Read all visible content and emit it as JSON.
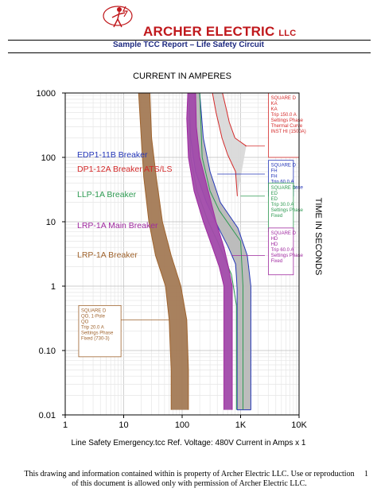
{
  "header": {
    "company": "ARCHER ELECTRIC",
    "company_suffix": "LLC",
    "report_title": "Sample TCC Report – Life Safety Circuit",
    "logo_icon": "lightning-man-logo",
    "logo_color": "#c0181c"
  },
  "footer": {
    "info_line": "Line Safety Emergency.tcc    Ref. Voltage: 480V    Current in Amps x 1",
    "copyright_1": "This drawing and information contained within is property of Archer Electric LLC.  Use or reproduction",
    "copyright_2": "of this document is allowed only with permission of Archer Electric LLC.",
    "page_number": "1"
  },
  "chart_data": {
    "type": "line",
    "xscale": "log",
    "yscale": "log",
    "xlim": [
      1,
      10000
    ],
    "ylim": [
      0.01,
      1000
    ],
    "xlabel": "CURRENT IN AMPERES",
    "ylabel": "TIME IN SECONDS",
    "x_ticks": [
      {
        "value": 1,
        "label": "1"
      },
      {
        "value": 10,
        "label": "10"
      },
      {
        "value": 100,
        "label": "100"
      },
      {
        "value": 1000,
        "label": "1K"
      },
      {
        "value": 10000,
        "label": "10K"
      }
    ],
    "y_ticks": [
      {
        "value": 1000,
        "label": "1000"
      },
      {
        "value": 100,
        "label": "100"
      },
      {
        "value": 10,
        "label": "10"
      },
      {
        "value": 1,
        "label": "1"
      },
      {
        "value": 0.1,
        "label": "0.10"
      },
      {
        "value": 0.01,
        "label": "0.01"
      }
    ],
    "grid": true,
    "series": [
      {
        "name": "DP1-12A Breaker ATS/LS",
        "color": "#d42a2a",
        "fill": "#d9d9d9",
        "label_position": {
          "x": 1.6,
          "y": 60
        },
        "left": [
          [
            330,
            1000
          ],
          [
            380,
            500
          ],
          [
            480,
            200
          ],
          [
            600,
            110
          ],
          [
            820,
            60
          ],
          [
            830,
            50
          ],
          [
            880,
            25
          ]
        ],
        "right": [
          [
            490,
            1000
          ],
          [
            560,
            600
          ],
          [
            640,
            350
          ],
          [
            800,
            200
          ],
          [
            1250,
            150
          ]
        ],
        "note": [
          "SQUARE D",
          "KA",
          "KA",
          "Trip 150.0 A",
          "Settings Phase",
          "Thermal Curve",
          "INST HI (1500A)"
        ],
        "note_box": {
          "x": 3000,
          "y": 1000,
          "x2": 10000,
          "y2": 100
        }
      },
      {
        "name": "EDP1-11B Breaker",
        "color": "#2436b8",
        "fill": "#b8b8b8",
        "label_position": {
          "x": 1.6,
          "y": 100
        },
        "left": [
          [
            130,
            1000
          ],
          [
            140,
            200
          ],
          [
            170,
            60
          ],
          [
            260,
            20
          ],
          [
            420,
            8
          ],
          [
            620,
            4
          ],
          [
            820,
            2.2
          ],
          [
            850,
            1.4
          ],
          [
            870,
            0.9
          ]
        ],
        "right": [
          [
            200,
            1000
          ],
          [
            230,
            200
          ],
          [
            300,
            60
          ],
          [
            450,
            20
          ],
          [
            900,
            8
          ],
          [
            1300,
            3
          ],
          [
            1500,
            1
          ]
        ],
        "bottom_y": 0.012,
        "bottom_x_left": 870,
        "bottom_x_right": 1500,
        "note": [
          "SQUARE D",
          "FH",
          "FH",
          "Trip 60.0 A",
          "Settings Phase",
          "Fixed"
        ],
        "note_box": {
          "x": 3000,
          "y": 90,
          "x2": 8000,
          "y2": 25
        }
      },
      {
        "name": "LLP-1A Breaker",
        "color": "#2e9a52",
        "fill": "none",
        "label_position": {
          "x": 1.6,
          "y": 24
        },
        "left": [
          [
            130,
            1000
          ],
          [
            140,
            100
          ],
          [
            180,
            30
          ],
          [
            280,
            10
          ],
          [
            400,
            5
          ],
          [
            700,
            1.5
          ],
          [
            850,
            0.5
          ],
          [
            850,
            0.012
          ]
        ],
        "right": [
          [
            200,
            1000
          ],
          [
            220,
            100
          ],
          [
            300,
            30
          ],
          [
            430,
            15
          ],
          [
            1000,
            5
          ],
          [
            1100,
            1
          ],
          [
            1100,
            0.012
          ]
        ],
        "note": [
          "SQUARE D",
          "ED",
          "ED",
          "Trip 30.0 A",
          "Settings Phase",
          "Fixed"
        ],
        "note_box": {
          "x": 3000,
          "y": 40,
          "x2": 8000,
          "y2": 7
        }
      },
      {
        "name": "LRP-1A Main Breaker",
        "color": "#a02aa0",
        "fill": "#a14aaa",
        "label_position": {
          "x": 1.6,
          "y": 8
        },
        "left": [
          [
            125,
            1000
          ],
          [
            120,
            400
          ],
          [
            128,
            100
          ],
          [
            160,
            30
          ],
          [
            230,
            10
          ],
          [
            330,
            4
          ],
          [
            430,
            2
          ],
          [
            520,
            1
          ],
          [
            520,
            0.012
          ]
        ],
        "right": [
          [
            170,
            1000
          ],
          [
            175,
            300
          ],
          [
            200,
            100
          ],
          [
            280,
            30
          ],
          [
            380,
            10
          ],
          [
            520,
            4
          ],
          [
            620,
            2
          ],
          [
            720,
            1
          ],
          [
            720,
            0.012
          ]
        ],
        "note": [
          "SQUARE D",
          "HD",
          "HD",
          "Trip 60.0 A",
          "Settings Phase",
          "Fixed"
        ],
        "note_box": {
          "x": 3000,
          "y": 8,
          "x2": 8000,
          "y2": 1.5
        }
      },
      {
        "name": "LRP-1A Breaker",
        "color": "#a0642e",
        "fill": "#a37a55",
        "label_position": {
          "x": 1.6,
          "y": 2.8
        },
        "left": [
          [
            18,
            1000
          ],
          [
            20,
            200
          ],
          [
            22,
            50
          ],
          [
            27,
            10
          ],
          [
            35,
            3
          ],
          [
            52,
            1
          ],
          [
            60,
            0.3
          ],
          [
            65,
            0.05
          ],
          [
            65,
            0.012
          ]
        ],
        "right": [
          [
            28,
            1000
          ],
          [
            30,
            200
          ],
          [
            36,
            50
          ],
          [
            46,
            10
          ],
          [
            65,
            3
          ],
          [
            95,
            1
          ],
          [
            120,
            0.3
          ],
          [
            128,
            0.05
          ],
          [
            128,
            0.012
          ]
        ],
        "note": [
          "SQUARE D",
          "QO, 1-Pole",
          "QO",
          "Trip 20.0 A",
          "Settings Phase",
          "Fixed (730-3)"
        ],
        "note_box": {
          "x": 1.7,
          "y": 0.5,
          "x2": 9,
          "y2": 0.08
        }
      }
    ]
  }
}
